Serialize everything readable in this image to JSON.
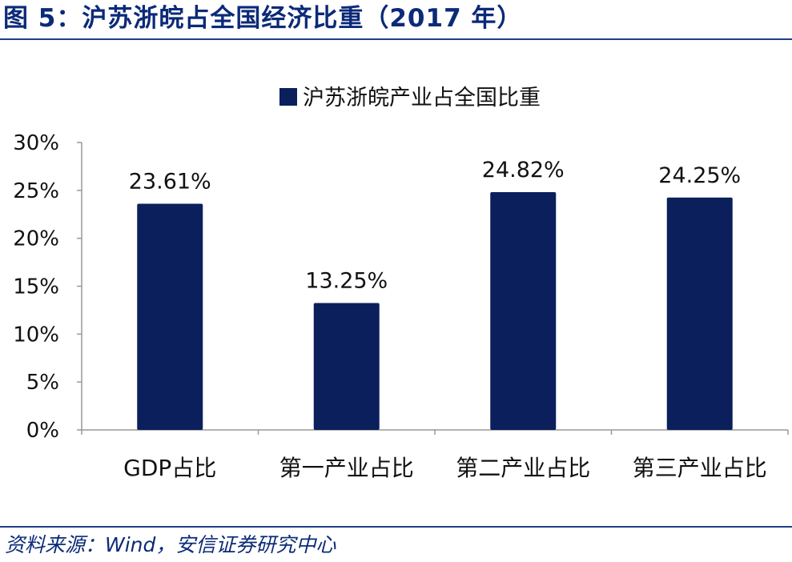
{
  "figure": {
    "title": "图 5：沪苏浙皖占全国经济比重（2017 年）",
    "source": "资料来源：Wind，安信证券研究中心"
  },
  "colors": {
    "bar": "#0b1f5c",
    "title": "#0b2a78",
    "rule": "#1f3f8c",
    "axis": "#999999"
  },
  "chart_data": {
    "type": "bar",
    "title": "",
    "xlabel": "",
    "ylabel": "",
    "ylim": [
      0,
      30
    ],
    "yticks": [
      "0%",
      "5%",
      "10%",
      "15%",
      "20%",
      "25%",
      "30%"
    ],
    "grid": false,
    "legend_position": "top-center",
    "categories": [
      "GDP占比",
      "第一产业占比",
      "第二产业占比",
      "第三产业占比"
    ],
    "series": [
      {
        "name": "沪苏浙皖产业占全国比重",
        "values": [
          23.61,
          13.25,
          24.82,
          24.25
        ],
        "labels": [
          "23.61%",
          "13.25%",
          "24.82%",
          "24.25%"
        ]
      }
    ]
  }
}
